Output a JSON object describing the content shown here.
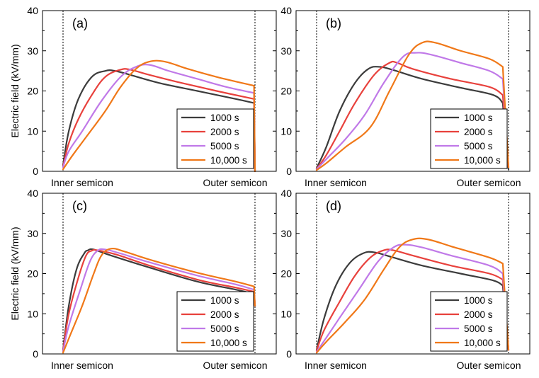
{
  "colors": {
    "series": [
      "#3c3c3c",
      "#e8413c",
      "#c079e8",
      "#f07818"
    ]
  },
  "chart_data": [
    {
      "type": "line",
      "panel_label": "(a)",
      "ylabel": "Electric field (kV/mm)",
      "xlabel_left": "Inner semicon",
      "xlabel_right": "Outer semicon",
      "ylim": [
        0,
        40
      ],
      "yticks": [
        "0",
        "10",
        "20",
        "30",
        "40"
      ],
      "xlim": [
        0,
        1
      ],
      "legend_position": "bottom-right",
      "series": [
        {
          "name": "1000 s",
          "x": [
            0,
            0.03,
            0.08,
            0.15,
            0.22,
            0.27,
            0.35,
            0.5,
            0.7,
            0.9,
            0.995,
            1.0
          ],
          "values": [
            1.5,
            10,
            18,
            23.5,
            25,
            25,
            24,
            22,
            20,
            18,
            17,
            0
          ]
        },
        {
          "name": "2000 s",
          "x": [
            0,
            0.03,
            0.08,
            0.15,
            0.22,
            0.3,
            0.35,
            0.45,
            0.6,
            0.8,
            0.995,
            1.0
          ],
          "values": [
            1.2,
            7,
            13,
            19,
            23.5,
            25.3,
            25.3,
            24,
            22.2,
            20,
            18,
            0
          ]
        },
        {
          "name": "5000 s",
          "x": [
            0,
            0.03,
            0.1,
            0.2,
            0.3,
            0.38,
            0.45,
            0.55,
            0.7,
            0.85,
            0.995,
            1.0
          ],
          "values": [
            1,
            5,
            10,
            17.5,
            23.5,
            26,
            26.5,
            25,
            23,
            21,
            19.5,
            0
          ]
        },
        {
          "name": "10,000 s",
          "x": [
            0,
            0.05,
            0.12,
            0.22,
            0.3,
            0.38,
            0.45,
            0.53,
            0.65,
            0.8,
            0.995,
            1.0
          ],
          "values": [
            0.5,
            4,
            8.5,
            15,
            21,
            25.5,
            27.3,
            27.3,
            25.5,
            23.5,
            21.3,
            0
          ]
        }
      ]
    },
    {
      "type": "line",
      "panel_label": "(b)",
      "ylabel": "",
      "xlabel_left": "Inner semicon",
      "xlabel_right": "Outer semicon",
      "ylim": [
        0,
        40
      ],
      "yticks": [
        "0",
        "10",
        "20",
        "30",
        "40"
      ],
      "xlim": [
        0,
        1
      ],
      "legend_position": "bottom-right",
      "series": [
        {
          "name": "1000 s",
          "x": [
            0,
            0.05,
            0.12,
            0.2,
            0.27,
            0.33,
            0.4,
            0.55,
            0.75,
            0.92,
            0.97,
            1.0
          ],
          "values": [
            0.8,
            6,
            15,
            22,
            25.5,
            26,
            25.2,
            23,
            20.8,
            19,
            17,
            0.5
          ]
        },
        {
          "name": "2000 s",
          "x": [
            0,
            0.05,
            0.12,
            0.2,
            0.3,
            0.38,
            0.42,
            0.5,
            0.7,
            0.9,
            0.97,
            1.0
          ],
          "values": [
            0.6,
            4,
            10,
            17,
            24,
            27,
            27,
            25.5,
            23,
            21,
            19,
            1
          ]
        },
        {
          "name": "5000 s",
          "x": [
            0,
            0.05,
            0.15,
            0.25,
            0.35,
            0.45,
            0.52,
            0.6,
            0.75,
            0.9,
            0.97,
            1.0
          ],
          "values": [
            0.5,
            3,
            8,
            14,
            22,
            28.5,
            29.5,
            29,
            27,
            25,
            23,
            1
          ]
        },
        {
          "name": "10,000 s",
          "x": [
            0,
            0.05,
            0.15,
            0.28,
            0.38,
            0.48,
            0.55,
            0.62,
            0.75,
            0.9,
            0.97,
            1.0
          ],
          "values": [
            0.3,
            2,
            6,
            11,
            20,
            29,
            32,
            32,
            30,
            28,
            26,
            1
          ]
        }
      ]
    },
    {
      "type": "line",
      "panel_label": "(c)",
      "ylabel": "Electric field (kV/mm)",
      "xlabel_left": "Inner semicon",
      "xlabel_right": "Outer semicon",
      "ylim": [
        0,
        40
      ],
      "yticks": [
        "0",
        "10",
        "20",
        "30",
        "40"
      ],
      "xlim": [
        0,
        1
      ],
      "legend_position": "bottom-right",
      "series": [
        {
          "name": "1000 s",
          "x": [
            0,
            0.03,
            0.07,
            0.11,
            0.13,
            0.16,
            0.25,
            0.45,
            0.7,
            0.9,
            0.995,
            1.0
          ],
          "values": [
            1,
            12,
            21,
            25,
            25.8,
            26,
            24.5,
            21.5,
            18,
            16,
            15,
            12
          ]
        },
        {
          "name": "2000 s",
          "x": [
            0,
            0.03,
            0.08,
            0.12,
            0.15,
            0.18,
            0.28,
            0.45,
            0.7,
            0.9,
            0.995,
            1.0
          ],
          "values": [
            0.8,
            10,
            19,
            24.5,
            25.7,
            25.8,
            24.7,
            22,
            18.5,
            16.5,
            15.5,
            12
          ]
        },
        {
          "name": "5000 s",
          "x": [
            0,
            0.03,
            0.09,
            0.14,
            0.18,
            0.22,
            0.3,
            0.45,
            0.7,
            0.9,
            0.995,
            1.0
          ],
          "values": [
            0.6,
            7,
            16,
            23,
            25.7,
            26,
            25,
            22.8,
            19.5,
            17.3,
            16,
            12
          ]
        },
        {
          "name": "10,000 s",
          "x": [
            0,
            0.04,
            0.1,
            0.16,
            0.2,
            0.25,
            0.32,
            0.45,
            0.7,
            0.9,
            0.995,
            1.0
          ],
          "values": [
            0.3,
            5,
            12,
            20,
            24.5,
            26.2,
            25.5,
            23.5,
            20.2,
            18,
            16.8,
            12
          ]
        }
      ]
    },
    {
      "type": "line",
      "panel_label": "(d)",
      "ylabel": "",
      "xlabel_left": "Inner semicon",
      "xlabel_right": "Outer semicon",
      "ylim": [
        0,
        40
      ],
      "yticks": [
        "0",
        "10",
        "20",
        "30",
        "40"
      ],
      "xlim": [
        0,
        1
      ],
      "legend_position": "bottom-right",
      "series": [
        {
          "name": "1000 s",
          "x": [
            0,
            0.04,
            0.1,
            0.17,
            0.24,
            0.3,
            0.4,
            0.55,
            0.75,
            0.92,
            0.97,
            1.0
          ],
          "values": [
            1,
            9,
            17,
            22.5,
            25,
            25.3,
            24,
            22,
            20,
            18.3,
            17,
            1
          ]
        },
        {
          "name": "2000 s",
          "x": [
            0,
            0.04,
            0.12,
            0.2,
            0.28,
            0.35,
            0.4,
            0.5,
            0.7,
            0.9,
            0.97,
            1.0
          ],
          "values": [
            0.8,
            6,
            13,
            19.5,
            24,
            25.8,
            25.8,
            24.5,
            22,
            20,
            18.5,
            1
          ]
        },
        {
          "name": "5000 s",
          "x": [
            0,
            0.05,
            0.12,
            0.22,
            0.32,
            0.4,
            0.46,
            0.55,
            0.7,
            0.9,
            0.97,
            1.0
          ],
          "values": [
            0.5,
            4,
            9,
            16,
            23,
            26.5,
            27.2,
            26.5,
            24.5,
            22,
            20,
            1
          ]
        },
        {
          "name": "10,000 s",
          "x": [
            0,
            0.05,
            0.15,
            0.25,
            0.35,
            0.43,
            0.5,
            0.58,
            0.72,
            0.9,
            0.97,
            1.0
          ],
          "values": [
            0.3,
            3,
            8,
            13.5,
            21,
            26.5,
            28.5,
            28.5,
            26.5,
            24,
            22.5,
            1
          ]
        }
      ]
    }
  ]
}
